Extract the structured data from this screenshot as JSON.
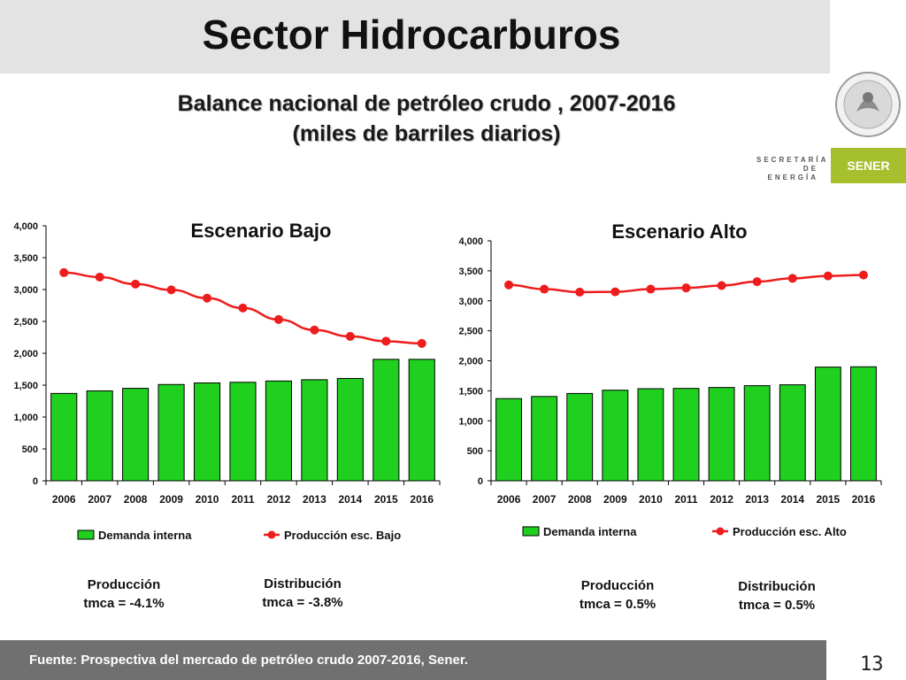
{
  "header": {
    "title": "Sector Hidrocarburos",
    "subtitle_line1": "Balance nacional de petróleo crudo , 2007-2016",
    "subtitle_line2": "(miles de barriles diarios)"
  },
  "logo": {
    "secretaria_line1": "SECRETARÍA",
    "secretaria_line2": "DE ENERGÍA",
    "brand": "SENER",
    "brand_color": "#a6bf2d"
  },
  "chart_data": [
    {
      "type": "bar",
      "title": "Escenario Bajo",
      "categories": [
        "2006",
        "2007",
        "2008",
        "2009",
        "2010",
        "2011",
        "2012",
        "2013",
        "2014",
        "2015",
        "2016"
      ],
      "series": [
        {
          "name": "Demanda interna",
          "type": "bar",
          "color": "#1fd01f",
          "values": [
            1370,
            1410,
            1450,
            1510,
            1535,
            1545,
            1565,
            1585,
            1605,
            1905,
            1905
          ]
        },
        {
          "name": "Producción esc. Bajo",
          "type": "line",
          "color": "#ee1c1c",
          "values": [
            3265,
            3195,
            3085,
            2995,
            2865,
            2710,
            2530,
            2365,
            2265,
            2190,
            2155
          ]
        }
      ],
      "ylim": [
        0,
        4000
      ],
      "yticks": [
        "0",
        "500",
        "1,000",
        "1,500",
        "2,000",
        "2,500",
        "3,000",
        "3,500",
        "4,000"
      ],
      "legend": "bottom",
      "grid": false
    },
    {
      "type": "bar",
      "title": "Escenario Alto",
      "categories": [
        "2006",
        "2007",
        "2008",
        "2009",
        "2010",
        "2011",
        "2012",
        "2013",
        "2014",
        "2015",
        "2016"
      ],
      "series": [
        {
          "name": "Demanda interna",
          "type": "bar",
          "color": "#1fd01f",
          "values": [
            1370,
            1405,
            1455,
            1510,
            1535,
            1540,
            1555,
            1585,
            1600,
            1895,
            1900
          ]
        },
        {
          "name": "Producción esc. Alto",
          "type": "line",
          "color": "#ee1c1c",
          "values": [
            3265,
            3195,
            3145,
            3150,
            3195,
            3215,
            3255,
            3320,
            3375,
            3415,
            3430
          ]
        }
      ],
      "ylim": [
        0,
        4000
      ],
      "yticks": [
        "0",
        "500",
        "1,000",
        "1,500",
        "2,000",
        "2,500",
        "3,000",
        "3,500",
        "4,000"
      ],
      "legend": "bottom",
      "grid": false
    }
  ],
  "notes": {
    "bajo_produccion_label": "Producción",
    "bajo_produccion_value": "tmca = -4.1%",
    "bajo_distribucion_label": "Distribución",
    "bajo_distribucion_value": "tmca = -3.8%",
    "alto_produccion_label": "Producción",
    "alto_produccion_value": "tmca = 0.5%",
    "alto_distribucion_label": "Distribución",
    "alto_distribucion_value": "tmca = 0.5%"
  },
  "footer": {
    "source": "Fuente: Prospectiva del mercado de petróleo crudo 2007-2016, Sener.",
    "page_number": "13"
  }
}
